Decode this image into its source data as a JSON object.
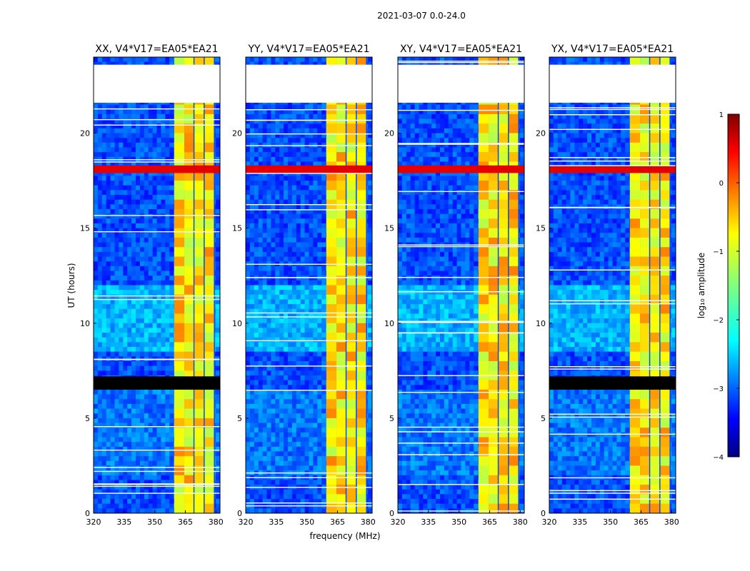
{
  "figure": {
    "suptitle": "2021-03-07 0.0-24.0",
    "xlabel": "frequency (MHz)",
    "ylabel": "UT (hours)"
  },
  "colorbar": {
    "label": "log₁₀ amplitude",
    "ticks": [
      "1",
      "0",
      "−1",
      "−2",
      "−3",
      "−4"
    ],
    "range": [
      -4,
      1
    ],
    "colormap": "jet"
  },
  "chart_data": [
    {
      "type": "heatmap",
      "title": "XX, V4*V17=EA05*EA21",
      "xlabel": "frequency (MHz)",
      "ylabel": "UT (hours)",
      "xlim": [
        320,
        382
      ],
      "ylim": [
        0,
        24
      ],
      "xticks": [
        "320",
        "335",
        "350",
        "365",
        "380"
      ],
      "yticks": [
        "0",
        "5",
        "10",
        "15",
        "20"
      ],
      "hot_bands_mhz": [
        [
          359.5,
          364.5
        ],
        [
          364.5,
          369.0
        ],
        [
          369.5,
          374.0
        ],
        [
          374.5,
          379.0
        ]
      ],
      "high_amp_hours": [
        17.9,
        18.3
      ],
      "flagged_hours": [
        [
          21.6,
          23.6
        ],
        [
          6.5,
          7.2
        ]
      ]
    },
    {
      "type": "heatmap",
      "title": "YY, V4*V17=EA05*EA21",
      "xlabel": "frequency (MHz)",
      "ylabel": "UT (hours)",
      "xlim": [
        320,
        382
      ],
      "ylim": [
        0,
        24
      ],
      "xticks": [
        "320",
        "335",
        "350",
        "365",
        "380"
      ],
      "yticks": [
        "0",
        "5",
        "10",
        "15",
        "20"
      ],
      "hot_bands_mhz": [
        [
          359.5,
          364.5
        ],
        [
          364.5,
          369.0
        ],
        [
          369.5,
          374.0
        ],
        [
          374.5,
          379.0
        ]
      ],
      "high_amp_hours": [
        17.9,
        18.3
      ],
      "flagged_hours": [
        [
          21.6,
          23.6
        ]
      ]
    },
    {
      "type": "heatmap",
      "title": "XY, V4*V17=EA05*EA21",
      "xlabel": "frequency (MHz)",
      "ylabel": "UT (hours)",
      "xlim": [
        320,
        382
      ],
      "ylim": [
        0,
        24
      ],
      "xticks": [
        "320",
        "335",
        "350",
        "365",
        "380"
      ],
      "yticks": [
        "0",
        "5",
        "10",
        "15",
        "20"
      ],
      "hot_bands_mhz": [
        [
          359.5,
          364.5
        ],
        [
          364.5,
          369.0
        ],
        [
          369.5,
          374.0
        ],
        [
          374.5,
          379.0
        ]
      ],
      "high_amp_hours": [
        17.9,
        18.3
      ],
      "flagged_hours": [
        [
          21.6,
          23.6
        ]
      ]
    },
    {
      "type": "heatmap",
      "title": "YX, V4*V17=EA05*EA21",
      "xlabel": "frequency (MHz)",
      "ylabel": "UT (hours)",
      "xlim": [
        320,
        382
      ],
      "ylim": [
        0,
        24
      ],
      "xticks": [
        "320",
        "335",
        "350",
        "365",
        "380"
      ],
      "yticks": [
        "0",
        "5",
        "10",
        "15",
        "20"
      ],
      "hot_bands_mhz": [
        [
          359.5,
          364.5
        ],
        [
          364.5,
          369.0
        ],
        [
          369.5,
          374.0
        ],
        [
          374.5,
          379.0
        ]
      ],
      "high_amp_hours": [
        17.9,
        18.3
      ],
      "flagged_hours": [
        [
          21.6,
          23.6
        ],
        [
          6.5,
          7.2
        ]
      ]
    }
  ]
}
